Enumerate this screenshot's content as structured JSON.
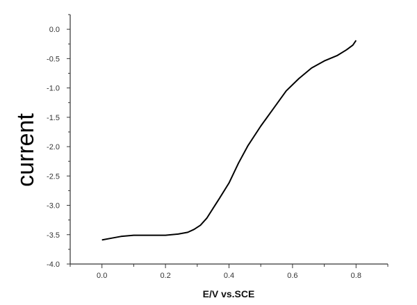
{
  "chart_data": {
    "type": "line",
    "title": "",
    "xlabel": "E/V vs.SCE",
    "ylabel": "current",
    "xlim": [
      -0.1,
      0.9
    ],
    "ylim": [
      -4.0,
      0.25
    ],
    "grid": false,
    "x_ticks": [
      0.0,
      0.2,
      0.4,
      0.6,
      0.8
    ],
    "x_tick_labels": [
      "0.0",
      "0.2",
      "0.4",
      "0.6",
      "0.8"
    ],
    "y_ticks": [
      0.0,
      -0.5,
      -1.0,
      -1.5,
      -2.0,
      -2.5,
      -3.0,
      -3.5,
      -4.0
    ],
    "y_tick_labels": [
      "0.0",
      "-0.5",
      "-1.0",
      "-1.5",
      "-2.0",
      "-2.5",
      "-3.0",
      "-3.5",
      "-4.0"
    ],
    "line_color": "#000000",
    "series": [
      {
        "name": "current",
        "x": [
          0.0,
          0.03,
          0.06,
          0.1,
          0.15,
          0.2,
          0.24,
          0.27,
          0.29,
          0.31,
          0.33,
          0.35,
          0.37,
          0.4,
          0.43,
          0.46,
          0.5,
          0.54,
          0.58,
          0.62,
          0.66,
          0.7,
          0.74,
          0.77,
          0.79,
          0.8
        ],
        "values": [
          -3.59,
          -3.56,
          -3.53,
          -3.51,
          -3.51,
          -3.51,
          -3.49,
          -3.46,
          -3.41,
          -3.34,
          -3.22,
          -3.05,
          -2.88,
          -2.62,
          -2.28,
          -1.98,
          -1.65,
          -1.35,
          -1.05,
          -0.84,
          -0.66,
          -0.54,
          -0.45,
          -0.35,
          -0.27,
          -0.19
        ]
      }
    ]
  }
}
